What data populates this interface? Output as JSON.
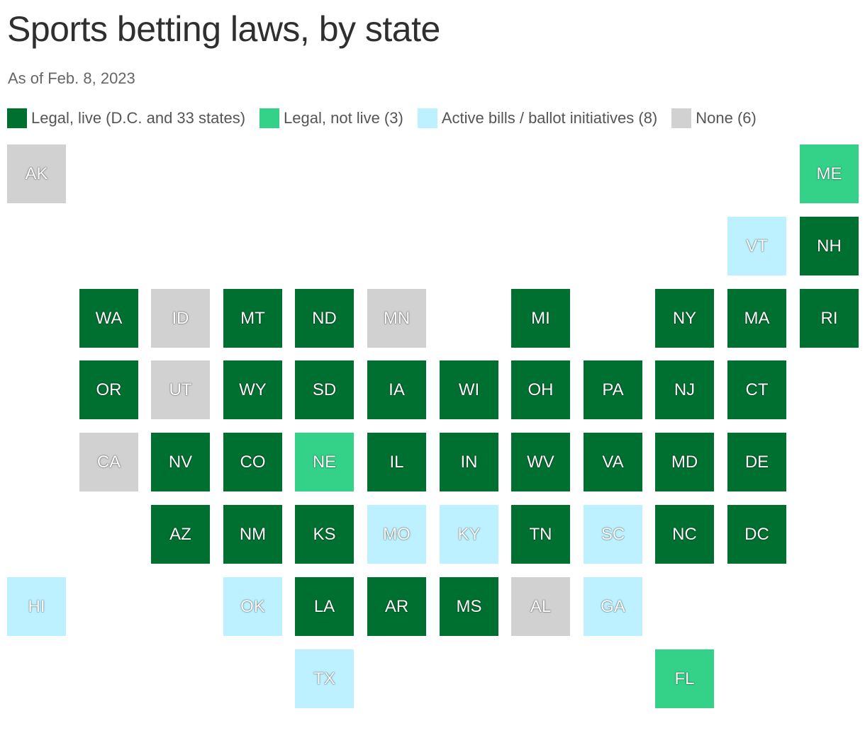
{
  "title": "Sports betting laws, by state",
  "subtitle": "As of Feb. 8, 2023",
  "legend": [
    {
      "key": "live",
      "label": "Legal, live (D.C. and 33 states)",
      "color": "#007030"
    },
    {
      "key": "notlive",
      "label": "Legal, not live (3)",
      "color": "#33d288"
    },
    {
      "key": "bills",
      "label": "Active bills / ballot initiatives (8)",
      "color": "#bdf1ff"
    },
    {
      "key": "none",
      "label": "None (6)",
      "color": "#d0d1d0"
    }
  ],
  "states": [
    {
      "abbr": "AK",
      "status": "none",
      "col": 0,
      "row": 0
    },
    {
      "abbr": "ME",
      "status": "notlive",
      "col": 11,
      "row": 0
    },
    {
      "abbr": "VT",
      "status": "bills",
      "col": 10,
      "row": 1
    },
    {
      "abbr": "NH",
      "status": "live",
      "col": 11,
      "row": 1
    },
    {
      "abbr": "WA",
      "status": "live",
      "col": 1,
      "row": 2
    },
    {
      "abbr": "ID",
      "status": "none",
      "col": 2,
      "row": 2
    },
    {
      "abbr": "MT",
      "status": "live",
      "col": 3,
      "row": 2
    },
    {
      "abbr": "ND",
      "status": "live",
      "col": 4,
      "row": 2
    },
    {
      "abbr": "MN",
      "status": "none",
      "col": 5,
      "row": 2
    },
    {
      "abbr": "MI",
      "status": "live",
      "col": 7,
      "row": 2
    },
    {
      "abbr": "NY",
      "status": "live",
      "col": 9,
      "row": 2
    },
    {
      "abbr": "MA",
      "status": "live",
      "col": 10,
      "row": 2
    },
    {
      "abbr": "RI",
      "status": "live",
      "col": 11,
      "row": 2
    },
    {
      "abbr": "OR",
      "status": "live",
      "col": 1,
      "row": 3
    },
    {
      "abbr": "UT",
      "status": "none",
      "col": 2,
      "row": 3
    },
    {
      "abbr": "WY",
      "status": "live",
      "col": 3,
      "row": 3
    },
    {
      "abbr": "SD",
      "status": "live",
      "col": 4,
      "row": 3
    },
    {
      "abbr": "IA",
      "status": "live",
      "col": 5,
      "row": 3
    },
    {
      "abbr": "WI",
      "status": "live",
      "col": 6,
      "row": 3
    },
    {
      "abbr": "OH",
      "status": "live",
      "col": 7,
      "row": 3
    },
    {
      "abbr": "PA",
      "status": "live",
      "col": 8,
      "row": 3
    },
    {
      "abbr": "NJ",
      "status": "live",
      "col": 9,
      "row": 3
    },
    {
      "abbr": "CT",
      "status": "live",
      "col": 10,
      "row": 3
    },
    {
      "abbr": "CA",
      "status": "none",
      "col": 1,
      "row": 4
    },
    {
      "abbr": "NV",
      "status": "live",
      "col": 2,
      "row": 4
    },
    {
      "abbr": "CO",
      "status": "live",
      "col": 3,
      "row": 4
    },
    {
      "abbr": "NE",
      "status": "notlive",
      "col": 4,
      "row": 4
    },
    {
      "abbr": "IL",
      "status": "live",
      "col": 5,
      "row": 4
    },
    {
      "abbr": "IN",
      "status": "live",
      "col": 6,
      "row": 4
    },
    {
      "abbr": "WV",
      "status": "live",
      "col": 7,
      "row": 4
    },
    {
      "abbr": "VA",
      "status": "live",
      "col": 8,
      "row": 4
    },
    {
      "abbr": "MD",
      "status": "live",
      "col": 9,
      "row": 4
    },
    {
      "abbr": "DE",
      "status": "live",
      "col": 10,
      "row": 4
    },
    {
      "abbr": "AZ",
      "status": "live",
      "col": 2,
      "row": 5
    },
    {
      "abbr": "NM",
      "status": "live",
      "col": 3,
      "row": 5
    },
    {
      "abbr": "KS",
      "status": "live",
      "col": 4,
      "row": 5
    },
    {
      "abbr": "MO",
      "status": "bills",
      "col": 5,
      "row": 5
    },
    {
      "abbr": "KY",
      "status": "bills",
      "col": 6,
      "row": 5
    },
    {
      "abbr": "TN",
      "status": "live",
      "col": 7,
      "row": 5
    },
    {
      "abbr": "SC",
      "status": "bills",
      "col": 8,
      "row": 5
    },
    {
      "abbr": "NC",
      "status": "live",
      "col": 9,
      "row": 5
    },
    {
      "abbr": "DC",
      "status": "live",
      "col": 10,
      "row": 5
    },
    {
      "abbr": "HI",
      "status": "bills",
      "col": 0,
      "row": 6
    },
    {
      "abbr": "OK",
      "status": "bills",
      "col": 3,
      "row": 6
    },
    {
      "abbr": "LA",
      "status": "live",
      "col": 4,
      "row": 6
    },
    {
      "abbr": "AR",
      "status": "live",
      "col": 5,
      "row": 6
    },
    {
      "abbr": "MS",
      "status": "live",
      "col": 6,
      "row": 6
    },
    {
      "abbr": "AL",
      "status": "none",
      "col": 7,
      "row": 6
    },
    {
      "abbr": "GA",
      "status": "bills",
      "col": 8,
      "row": 6
    },
    {
      "abbr": "TX",
      "status": "bills",
      "col": 4,
      "row": 7
    },
    {
      "abbr": "FL",
      "status": "notlive",
      "col": 9,
      "row": 7
    }
  ]
}
